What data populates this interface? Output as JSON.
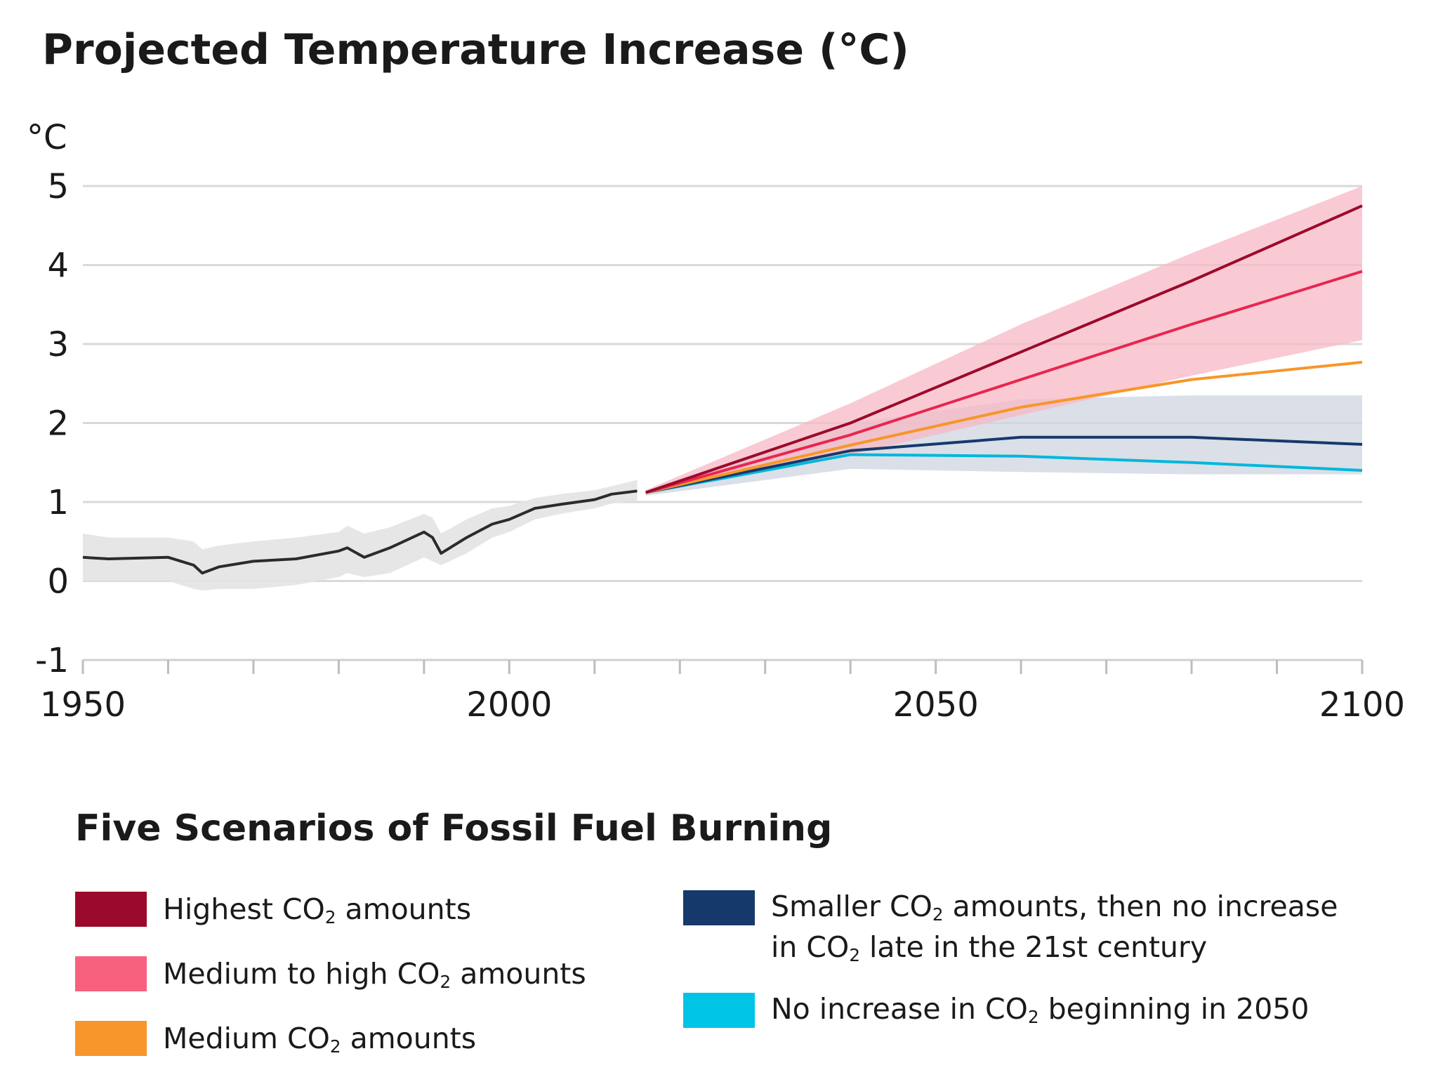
{
  "title": "Projected Temperature Increase (°C)",
  "chart_data": {
    "type": "line",
    "title": "Projected Temperature Increase (°C)",
    "ylabel": "°C",
    "xlim": [
      1950,
      2100
    ],
    "ylim": [
      -1,
      5
    ],
    "x_ticks": [
      1950,
      2000,
      2050,
      2100
    ],
    "y_ticks": [
      -1,
      0,
      1,
      2,
      3,
      4,
      5
    ],
    "grid": true,
    "historical": {
      "x": [
        1950,
        1953,
        1960,
        1963,
        1964,
        1966,
        1970,
        1975,
        1980,
        1981,
        1983,
        1986,
        1990,
        1991,
        1992,
        1995,
        1998,
        2000,
        2003,
        2006,
        2010,
        2012,
        2015
      ],
      "y": [
        0.3,
        0.28,
        0.3,
        0.2,
        0.1,
        0.18,
        0.25,
        0.28,
        0.38,
        0.42,
        0.3,
        0.42,
        0.62,
        0.55,
        0.35,
        0.55,
        0.72,
        0.78,
        0.92,
        0.97,
        1.03,
        1.1,
        1.14
      ],
      "band_low": [
        0.0,
        0.0,
        0.0,
        -0.1,
        -0.12,
        -0.1,
        -0.1,
        -0.05,
        0.05,
        0.1,
        0.05,
        0.1,
        0.3,
        0.25,
        0.2,
        0.35,
        0.55,
        0.62,
        0.78,
        0.85,
        0.92,
        0.98,
        1.02
      ],
      "band_high": [
        0.6,
        0.55,
        0.55,
        0.5,
        0.4,
        0.45,
        0.5,
        0.55,
        0.62,
        0.7,
        0.6,
        0.68,
        0.85,
        0.8,
        0.6,
        0.78,
        0.92,
        0.95,
        1.05,
        1.1,
        1.15,
        1.2,
        1.28
      ]
    },
    "projection_x": [
      2016,
      2040,
      2060,
      2080,
      2100
    ],
    "series": [
      {
        "name": "Highest CO₂ amounts",
        "color": "#9b0a2a",
        "values": [
          1.12,
          2.0,
          2.9,
          3.8,
          4.75
        ]
      },
      {
        "name": "Medium to high CO₂ amounts",
        "color": "#e8264f",
        "values": [
          1.12,
          1.85,
          2.55,
          3.25,
          3.92
        ]
      },
      {
        "name": "Medium CO₂ amounts",
        "color": "#f7962a",
        "values": [
          1.12,
          1.72,
          2.2,
          2.55,
          2.77
        ]
      },
      {
        "name": "Smaller CO₂ amounts, then no increase in CO₂ late in the 21st century",
        "color": "#16396b",
        "values": [
          1.12,
          1.65,
          1.82,
          1.82,
          1.73
        ]
      },
      {
        "name": "No increase in CO₂ beginning in 2050",
        "color": "#00b7db",
        "values": [
          1.12,
          1.6,
          1.58,
          1.5,
          1.4
        ]
      }
    ],
    "bands": [
      {
        "series": "high scenarios",
        "color": "#f7b8c4",
        "low": [
          1.1,
          1.6,
          2.1,
          2.6,
          3.05
        ],
        "high": [
          1.15,
          2.25,
          3.25,
          4.15,
          5.0
        ]
      },
      {
        "series": "low scenarios",
        "color": "#cdd4e0",
        "low": [
          1.08,
          1.42,
          1.38,
          1.35,
          1.35
        ],
        "high": [
          1.15,
          2.0,
          2.3,
          2.35,
          2.35
        ]
      }
    ]
  },
  "legend": {
    "title": "Five Scenarios of Fossil Fuel Burning",
    "items": [
      {
        "pre": "Highest CO",
        "sub": "2",
        "post": " amounts",
        "color": "#9b0a2a"
      },
      {
        "pre": "Medium to high CO",
        "sub": "2",
        "post": " amounts",
        "color": "#f7617e"
      },
      {
        "pre": "Medium CO",
        "sub": "2",
        "post": " amounts",
        "color": "#f7962a"
      },
      {
        "pre": "Smaller CO",
        "sub": "2",
        "post": " amounts, then no increase",
        "line2_pre": "in CO",
        "line2_sub": "2",
        "line2_post": " late in the 21st century",
        "color": "#16396b"
      },
      {
        "pre": "No increase in CO",
        "sub": "2",
        "post": " beginning in 2050",
        "color": "#00c4e6"
      }
    ]
  }
}
